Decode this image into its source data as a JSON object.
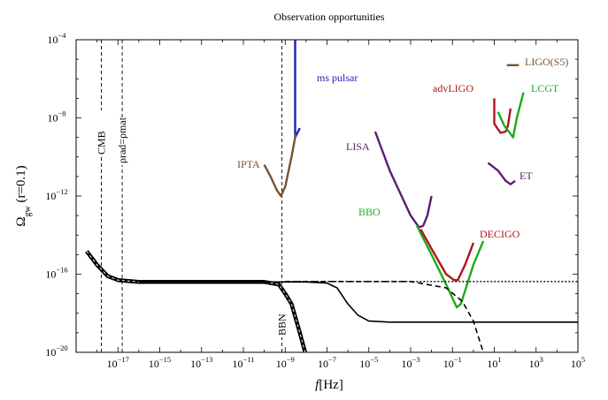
{
  "chart_data": {
    "type": "line",
    "title": "Observation opportunities",
    "xlabel": "f[Hz]",
    "ylabel": "Ω_gw (r=0.1)",
    "x_scale": "log",
    "y_scale": "log",
    "xlim": [
      1e-19,
      100000.0
    ],
    "ylim": [
      1e-20,
      0.0001
    ],
    "grid": false,
    "x_ticks": [
      -17,
      -15,
      -13,
      -11,
      -9,
      -7,
      -5,
      -3,
      -1,
      1,
      3,
      5
    ],
    "y_ticks": [
      -20,
      -16,
      -12,
      -8,
      -4
    ],
    "colors": {
      "brown": "#7a5230",
      "blue": "#1f1fb4",
      "red": "#b0151b",
      "green": "#1caa1c",
      "purple": "#5a1e6e",
      "black": "#000000"
    },
    "vertical_markers": [
      {
        "name": "CMB",
        "f": 1.6e-18
      },
      {
        "name": "ρrad=ρmat",
        "f": 1.6e-17
      },
      {
        "name": "BBN",
        "f": 7e-10
      }
    ],
    "series": [
      {
        "name": "ms pulsar",
        "color": "blue",
        "label": "ms pulsar",
        "points": [
          [
            3e-09,
            0.0001
          ],
          [
            3e-09,
            1e-09
          ],
          [
            5e-09,
            3e-09
          ]
        ]
      },
      {
        "name": "IPTA",
        "color": "brown",
        "label": "IPTA",
        "points": [
          [
            1e-10,
            4e-11
          ],
          [
            2e-10,
            1e-11
          ],
          [
            4e-10,
            2e-12
          ],
          [
            6.3e-10,
            1e-12
          ],
          [
            1e-09,
            3e-12
          ],
          [
            2e-09,
            1e-10
          ],
          [
            3.2e-09,
            1.5e-09
          ]
        ]
      },
      {
        "name": "LISA",
        "color": "purple",
        "label": "LISA",
        "points": [
          [
            2e-05,
            2e-09
          ],
          [
            0.0001,
            2e-11
          ],
          [
            0.001,
            1e-13
          ],
          [
            0.0025,
            2.5e-14
          ],
          [
            0.004,
            3e-14
          ],
          [
            0.0063,
            1e-13
          ],
          [
            0.01,
            1e-12
          ]
        ]
      },
      {
        "name": "BBO",
        "color": "green",
        "label": "BBO",
        "points": [
          [
            0.002,
            3e-14
          ],
          [
            0.01,
            1e-15
          ],
          [
            0.05,
            3e-17
          ],
          [
            0.16,
            2e-18
          ],
          [
            0.25,
            3e-18
          ],
          [
            0.5,
            3e-17
          ],
          [
            1,
            3e-16
          ],
          [
            3,
            5e-15
          ]
        ]
      },
      {
        "name": "DECIGO",
        "color": "red",
        "label": "DECIGO",
        "points": [
          [
            0.003,
            2e-14
          ],
          [
            0.01,
            2e-15
          ],
          [
            0.05,
            1e-16
          ],
          [
            0.12,
            5e-17
          ],
          [
            0.18,
            5e-17
          ],
          [
            0.4,
            3e-16
          ],
          [
            1,
            4e-15
          ]
        ]
      },
      {
        "name": "advLIGO",
        "color": "red",
        "label": "advLIGO",
        "points": [
          [
            10,
            1e-07
          ],
          [
            10,
            5e-09
          ],
          [
            20,
            1.7e-09
          ],
          [
            35,
            2e-09
          ],
          [
            45,
            4e-09
          ],
          [
            60,
            3e-08
          ]
        ]
      },
      {
        "name": "LCGT",
        "color": "green",
        "label": "LCGT",
        "points": [
          [
            15,
            2e-08
          ],
          [
            30,
            4e-09
          ],
          [
            60,
            1.5e-09
          ],
          [
            80,
            1e-09
          ],
          [
            120,
            1e-08
          ],
          [
            250,
            2e-07
          ]
        ]
      },
      {
        "name": "ET",
        "color": "purple",
        "label": "ET",
        "points": [
          [
            5,
            5e-11
          ],
          [
            15,
            2e-11
          ],
          [
            35,
            6e-12
          ],
          [
            60,
            4e-12
          ],
          [
            100,
            6e-12
          ]
        ]
      },
      {
        "name": "LIGO(S5)",
        "color": "brown",
        "label": "LIGO(S5)",
        "points": [
          [
            40,
            5e-06
          ],
          [
            150,
            5e-06
          ]
        ]
      },
      {
        "name": "thermal history (bold)",
        "color": "black",
        "style": "bold",
        "points": [
          [
            3.2e-19,
            1.5e-15
          ],
          [
            1e-18,
            3e-16
          ],
          [
            3.2e-18,
            8e-17
          ],
          [
            1e-17,
            5e-17
          ],
          [
            1e-16,
            4e-17
          ],
          [
            1e-10,
            4e-17
          ],
          [
            5e-10,
            3e-17
          ],
          [
            1e-09,
            1e-17
          ],
          [
            2e-09,
            3e-18
          ],
          [
            5e-09,
            1e-19
          ],
          [
            9e-09,
            1e-20
          ]
        ]
      },
      {
        "name": "solid spectrum",
        "color": "black",
        "style": "solid",
        "points": [
          [
            1e-16,
            4e-17
          ],
          [
            1e-08,
            4e-17
          ],
          [
            1e-07,
            3.5e-17
          ],
          [
            3e-07,
            2e-17
          ],
          [
            1e-06,
            3e-18
          ],
          [
            3e-06,
            8e-19
          ],
          [
            1e-05,
            4e-19
          ],
          [
            0.0001,
            3.5e-19
          ],
          [
            100000.0,
            3.5e-19
          ]
        ]
      },
      {
        "name": "dotted plateau",
        "color": "black",
        "style": "dotted",
        "points": [
          [
            1e-09,
            4.2e-17
          ],
          [
            100000.0,
            4.2e-17
          ]
        ]
      },
      {
        "name": "dashed cutoff",
        "color": "black",
        "style": "dashed",
        "points": [
          [
            1e-09,
            4.2e-17
          ],
          [
            0.001,
            4.2e-17
          ],
          [
            0.05,
            2e-17
          ],
          [
            0.3,
            4e-18
          ],
          [
            1,
            4e-19
          ],
          [
            3,
            1e-20
          ]
        ]
      }
    ]
  }
}
